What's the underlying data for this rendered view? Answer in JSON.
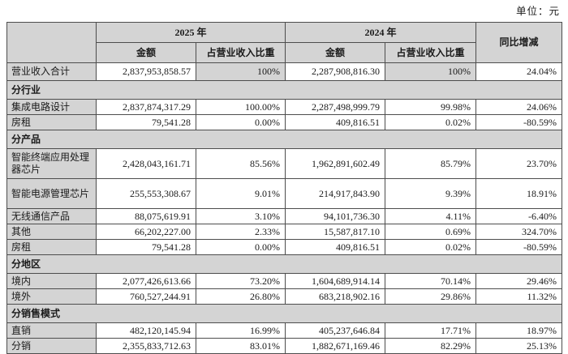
{
  "page": {
    "unit_label": "单位：元"
  },
  "colors": {
    "header_bg": "#d4d4d4",
    "cell_bg": "#ffffff",
    "border": "#4d4d4d",
    "text": "#1a1a1a"
  },
  "table": {
    "headers": {
      "y2025": "2025 年",
      "y2024": "2024 年",
      "amount": "金额",
      "ratio": "占营业收入比重",
      "yoy": "同比增减"
    },
    "rows": [
      {
        "type": "total",
        "label": "营业收入合计",
        "a2025": "2,837,953,858.57",
        "r2025": "100%",
        "a2024": "2,287,908,816.30",
        "r2024": "100%",
        "yoy": "24.04%"
      },
      {
        "type": "section",
        "label": "分行业"
      },
      {
        "type": "data",
        "label": "集成电路设计",
        "a2025": "2,837,874,317.29",
        "r2025": "100.00%",
        "a2024": "2,287,498,999.79",
        "r2024": "99.98%",
        "yoy": "24.06%"
      },
      {
        "type": "data",
        "label": "房租",
        "a2025": "79,541.28",
        "r2025": "0.00%",
        "a2024": "409,816.51",
        "r2024": "0.02%",
        "yoy": "-80.59%"
      },
      {
        "type": "section",
        "label": "分产品"
      },
      {
        "type": "data",
        "tall": true,
        "label": "智能终端应用处理器芯片",
        "a2025": "2,428,043,161.71",
        "r2025": "85.56%",
        "a2024": "1,962,891,602.49",
        "r2024": "85.79%",
        "yoy": "23.70%"
      },
      {
        "type": "data",
        "tall": true,
        "label": "智能电源管理芯片",
        "a2025": "255,553,308.67",
        "r2025": "9.01%",
        "a2024": "214,917,843.90",
        "r2024": "9.39%",
        "yoy": "18.91%"
      },
      {
        "type": "data",
        "label": "无线通信产品",
        "a2025": "88,075,619.91",
        "r2025": "3.10%",
        "a2024": "94,101,736.30",
        "r2024": "4.11%",
        "yoy": "-6.40%"
      },
      {
        "type": "data",
        "label": "其他",
        "a2025": "66,202,227.00",
        "r2025": "2.33%",
        "a2024": "15,587,817.10",
        "r2024": "0.69%",
        "yoy": "324.70%"
      },
      {
        "type": "data",
        "label": "房租",
        "a2025": "79,541.28",
        "r2025": "0.00%",
        "a2024": "409,816.51",
        "r2024": "0.02%",
        "yoy": "-80.59%"
      },
      {
        "type": "section",
        "label": "分地区"
      },
      {
        "type": "data",
        "label": "境内",
        "a2025": "2,077,426,613.66",
        "r2025": "73.20%",
        "a2024": "1,604,689,914.14",
        "r2024": "70.14%",
        "yoy": "29.46%"
      },
      {
        "type": "data",
        "label": "境外",
        "a2025": "760,527,244.91",
        "r2025": "26.80%",
        "a2024": "683,218,902.16",
        "r2024": "29.86%",
        "yoy": "11.32%"
      },
      {
        "type": "section",
        "label": "分销售模式"
      },
      {
        "type": "data",
        "label": "直销",
        "a2025": "482,120,145.94",
        "r2025": "16.99%",
        "a2024": "405,237,646.84",
        "r2024": "17.71%",
        "yoy": "18.97%"
      },
      {
        "type": "data",
        "label": "分销",
        "a2025": "2,355,833,712.63",
        "r2025": "83.01%",
        "a2024": "1,882,671,169.46",
        "r2024": "82.29%",
        "yoy": "25.13%"
      }
    ]
  }
}
